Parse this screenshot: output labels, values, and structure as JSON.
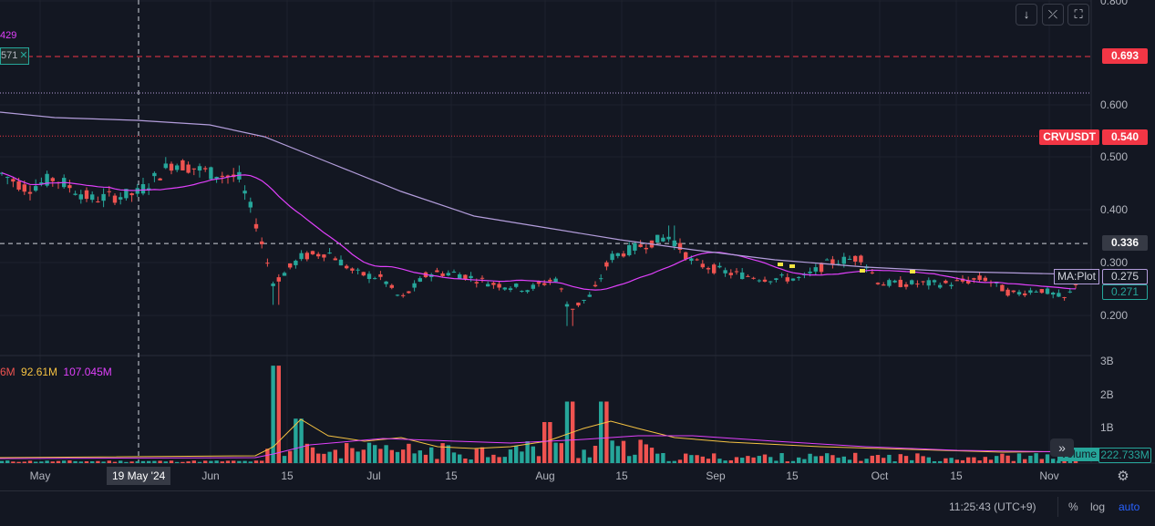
{
  "toolbar": {
    "download_icon": "arrow-down-icon",
    "collapse_icon": "collapse-icon",
    "fullscreen_icon": "fullscreen-icon"
  },
  "legend": {
    "top_value_1": "429",
    "top_value_2": "571",
    "volume_values": [
      "6M",
      "92.61M",
      "107.045M"
    ],
    "volume_colors": [
      "#ef5350",
      "#f5c242",
      "#e040fb"
    ]
  },
  "price_labels": {
    "top_line": "0.693",
    "symbol": "CRVUSDT",
    "symbol_price": "0.540",
    "crosshair_price": "0.336",
    "ma_label": "MA:Plot",
    "ma_value": "0.275",
    "last_price": "0.271",
    "volume_label": "Volume",
    "volume_value": "222.733M"
  },
  "time_axis": {
    "crosshair_date": "19 May '24",
    "ticks": [
      "May",
      "Jun",
      "15",
      "Jul",
      "15",
      "Aug",
      "15",
      "Sep",
      "15",
      "Oct",
      "15",
      "Nov"
    ]
  },
  "status_bar": {
    "time": "11:25:43 (UTC+9)",
    "percent": "%",
    "log": "log",
    "auto": "auto"
  },
  "colors": {
    "up": "#26a69a",
    "down": "#ef5350",
    "ma_fast": "#e040fb",
    "ma_slow": "#b39ddb",
    "accent": "#2962ff"
  },
  "chart_data": {
    "type": "candlestick",
    "symbol": "CRVUSDT",
    "price_ticks": [
      0.2,
      0.3,
      0.4,
      0.5,
      0.6,
      0.8
    ],
    "ylim": [
      0.16,
      0.85
    ],
    "volume_ticks": [
      "1B",
      "2B",
      "3B"
    ],
    "ohlc_sample": [
      {
        "date": "2024-05-01",
        "open": 0.47,
        "high": 0.5,
        "low": 0.43,
        "close": 0.45
      },
      {
        "date": "2024-05-19",
        "open": 0.42,
        "high": 0.45,
        "low": 0.41,
        "close": 0.43
      },
      {
        "date": "2024-05-28",
        "open": 0.5,
        "high": 0.51,
        "low": 0.47,
        "close": 0.48
      },
      {
        "date": "2024-06-12",
        "open": 0.36,
        "high": 0.37,
        "low": 0.22,
        "close": 0.26
      },
      {
        "date": "2024-07-05",
        "open": 0.26,
        "high": 0.27,
        "low": 0.21,
        "close": 0.23
      },
      {
        "date": "2024-08-05",
        "open": 0.23,
        "high": 0.26,
        "low": 0.18,
        "close": 0.22
      },
      {
        "date": "2024-08-24",
        "open": 0.33,
        "high": 0.37,
        "low": 0.31,
        "close": 0.35
      },
      {
        "date": "2024-09-28",
        "open": 0.31,
        "high": 0.33,
        "low": 0.28,
        "close": 0.3
      },
      {
        "date": "2024-11-05",
        "open": 0.25,
        "high": 0.27,
        "low": 0.24,
        "close": 0.271
      }
    ],
    "horizontal_lines": [
      0.693,
      0.62,
      0.54,
      0.336
    ],
    "last_price": 0.271,
    "ma_value": 0.275
  }
}
